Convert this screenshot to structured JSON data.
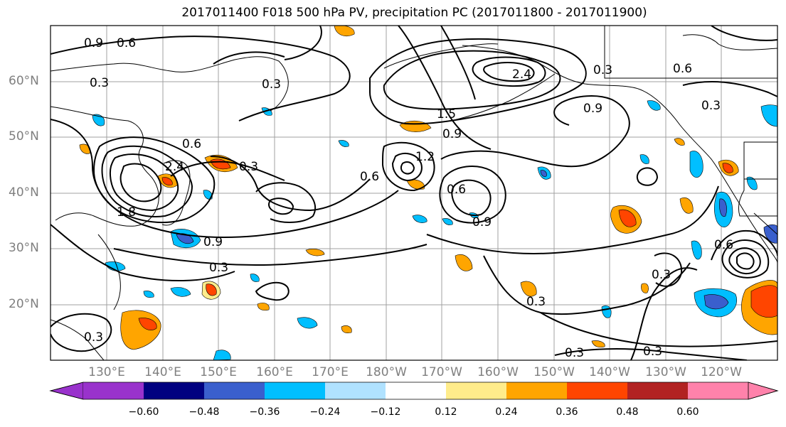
{
  "title": "2017011400 F018 500 hPa PV, precipitation PC (2017011800 - 2017011900)",
  "lat_labels": [
    "60°N",
    "50°N",
    "40°N",
    "30°N",
    "20°N"
  ],
  "lon_labels": [
    "130°E",
    "140°E",
    "150°E",
    "160°E",
    "170°E",
    "180°W",
    "170°W",
    "160°W",
    "150°W",
    "140°W",
    "130°W",
    "120°W"
  ],
  "contour_labels": [
    "0.9",
    "0.6",
    "0.3",
    "0.3",
    "0.6",
    "2.4",
    "1.8",
    "0.9",
    "0.3",
    "0.3",
    "0.6",
    "1.2",
    "1.5",
    "0.9",
    "0.6",
    "0.9",
    "2.4",
    "0.3",
    "0.9",
    "0.6",
    "0.3",
    "0.6",
    "0.3",
    "0.3",
    "0.3",
    "0.3",
    "0.3"
  ],
  "colorbar": {
    "colors": [
      "#9932cc",
      "#000080",
      "#3a5fcd",
      "#00bfff",
      "#b0e2ff",
      "#ffffff",
      "#ffec8b",
      "#ffa500",
      "#ff4500",
      "#b22222",
      "#ff82ab"
    ],
    "tick_labels": [
      "−0.60",
      "−0.48",
      "−0.36",
      "−0.24",
      "−0.12",
      "0.12",
      "0.24",
      "0.36",
      "0.48",
      "0.60"
    ]
  }
}
